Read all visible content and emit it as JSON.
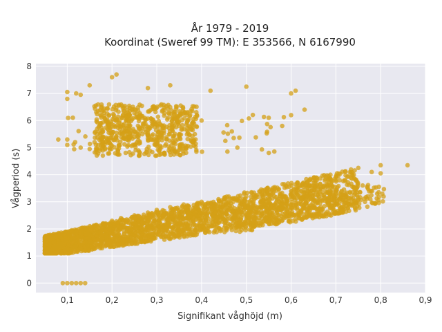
{
  "chart_data": {
    "type": "scatter",
    "title_line1": "År 1979 - 2019",
    "title_line2": "Koordinat (Sweref 99 TM): E 353566, N 6167990",
    "xlabel": "Signifikant våghöjd (m)",
    "ylabel": "Vågperiod (s)",
    "xlim": [
      0.03,
      0.9
    ],
    "ylim": [
      -0.35,
      8.1
    ],
    "xticks": [
      0.1,
      0.2,
      0.3,
      0.4,
      0.5,
      0.6,
      0.7,
      0.8,
      0.9
    ],
    "xtick_labels": [
      "0,1",
      "0,2",
      "0,3",
      "0,4",
      "0,5",
      "0,6",
      "0,7",
      "0,8",
      "0,9"
    ],
    "yticks": [
      0,
      1,
      2,
      3,
      4,
      5,
      6,
      7,
      8
    ],
    "ytick_labels": [
      "0",
      "1",
      "2",
      "3",
      "4",
      "5",
      "6",
      "7",
      "8"
    ],
    "grid": true,
    "marker_color": "#d4a017",
    "background_color": "#e8e8f0",
    "clusters": [
      {
        "x_range": [
          0.05,
          0.86
        ],
        "y_relation": "y ≈ 1.2 + 3.6·x, spread ±0.45",
        "y_range": [
          1.1,
          4.4
        ]
      },
      {
        "x_range": [
          0.15,
          0.4
        ],
        "y_range": [
          4.7,
          6.6
        ]
      },
      {
        "x_range": [
          0.1,
          0.65
        ],
        "y_range": [
          6.6,
          7.7
        ]
      }
    ],
    "points": [
      [
        0.09,
        0.0
      ],
      [
        0.1,
        0.0
      ],
      [
        0.11,
        0.0
      ],
      [
        0.12,
        0.0
      ],
      [
        0.13,
        0.0
      ],
      [
        0.14,
        0.0
      ],
      [
        0.05,
        1.45
      ],
      [
        0.06,
        1.4
      ],
      [
        0.07,
        1.5
      ],
      [
        0.08,
        1.55
      ],
      [
        0.09,
        1.6
      ],
      [
        0.1,
        1.7
      ],
      [
        0.12,
        1.9
      ],
      [
        0.14,
        2.0
      ],
      [
        0.16,
        2.1
      ],
      [
        0.18,
        2.2
      ],
      [
        0.2,
        2.3
      ],
      [
        0.22,
        2.4
      ],
      [
        0.25,
        2.5
      ],
      [
        0.28,
        2.6
      ],
      [
        0.3,
        2.7
      ],
      [
        0.33,
        2.8
      ],
      [
        0.36,
        2.9
      ],
      [
        0.4,
        3.0
      ],
      [
        0.45,
        3.1
      ],
      [
        0.5,
        3.2
      ],
      [
        0.55,
        3.3
      ],
      [
        0.6,
        3.4
      ],
      [
        0.65,
        3.6
      ],
      [
        0.7,
        3.8
      ],
      [
        0.74,
        4.0
      ],
      [
        0.78,
        4.1
      ],
      [
        0.8,
        4.05
      ],
      [
        0.8,
        4.35
      ],
      [
        0.86,
        4.35
      ],
      [
        0.1,
        7.05
      ],
      [
        0.1,
        6.8
      ],
      [
        0.12,
        7.0
      ],
      [
        0.13,
        6.95
      ],
      [
        0.15,
        7.3
      ],
      [
        0.2,
        7.6
      ],
      [
        0.21,
        7.7
      ],
      [
        0.28,
        7.2
      ],
      [
        0.33,
        7.3
      ],
      [
        0.42,
        7.1
      ],
      [
        0.5,
        7.25
      ],
      [
        0.6,
        7.0
      ],
      [
        0.61,
        7.1
      ],
      [
        0.63,
        6.4
      ],
      [
        0.08,
        5.3
      ],
      [
        0.1,
        5.1
      ],
      [
        0.1,
        5.3
      ],
      [
        0.13,
        5.0
      ],
      [
        0.15,
        4.95
      ],
      [
        0.18,
        5.2
      ],
      [
        0.2,
        5.5
      ],
      [
        0.25,
        5.6
      ],
      [
        0.3,
        5.4
      ],
      [
        0.35,
        5.8
      ],
      [
        0.4,
        6.0
      ],
      [
        0.48,
        5.0
      ],
      [
        0.55,
        6.1
      ],
      [
        0.58,
        5.8
      ],
      [
        0.6,
        6.2
      ]
    ]
  }
}
